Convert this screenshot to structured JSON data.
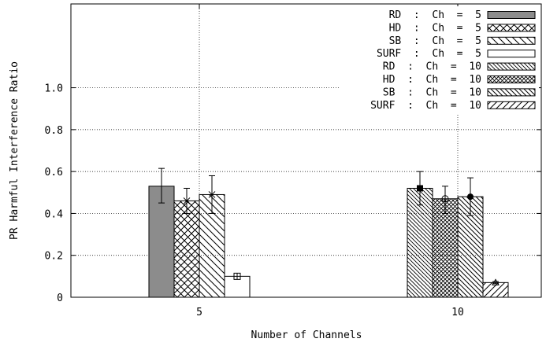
{
  "chart_data": {
    "type": "bar",
    "title": "",
    "xlabel": "Number of Channels",
    "ylabel": "PR Harmful Interference Ratio",
    "categories": [
      "5",
      "10"
    ],
    "ylim": [
      0,
      1.4
    ],
    "yticks": [
      "0",
      "0.2",
      "0.4",
      "0.6",
      "0.8",
      "1.0"
    ],
    "grid": true,
    "legend_position": "top-right",
    "series": [
      {
        "name": "RD  :  Ch  =  5",
        "category": "5",
        "value": 0.53,
        "err": [
          0.45,
          0.615
        ],
        "fill": "gray",
        "marker": "none"
      },
      {
        "name": "HD  :  Ch  =  5",
        "category": "5",
        "value": 0.46,
        "err": [
          0.4,
          0.52
        ],
        "fill": "crosshatch",
        "marker": "x"
      },
      {
        "name": "SB  :  Ch  =  5",
        "category": "5",
        "value": 0.49,
        "err": [
          0.4,
          0.58
        ],
        "fill": "backslash",
        "marker": "star"
      },
      {
        "name": "SURF  :  Ch  =  5",
        "category": "5",
        "value": 0.1,
        "err": [
          0.09,
          0.11
        ],
        "fill": "white",
        "marker": "boxplus"
      },
      {
        "name": "RD  :  Ch  =  10",
        "category": "10",
        "value": 0.52,
        "err": [
          0.44,
          0.6
        ],
        "fill": "densebackslash",
        "marker": "square"
      },
      {
        "name": "HD  :  Ch  =  10",
        "category": "10",
        "value": 0.47,
        "err": [
          0.4,
          0.53
        ],
        "fill": "densecross",
        "marker": "circle"
      },
      {
        "name": "SB  :  Ch  =  10",
        "category": "10",
        "value": 0.48,
        "err": [
          0.39,
          0.57
        ],
        "fill": "densebackslash2",
        "marker": "dot"
      },
      {
        "name": "SURF  :  Ch  =  10",
        "category": "10",
        "value": 0.07,
        "err": [
          0.065,
          0.075
        ],
        "fill": "slash",
        "marker": "triangle"
      }
    ]
  }
}
